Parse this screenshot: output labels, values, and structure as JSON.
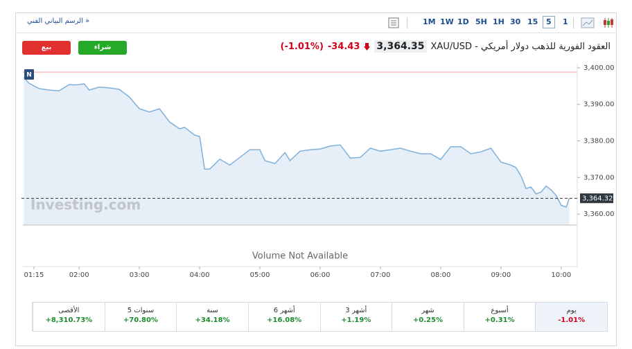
{
  "toolbar": {
    "link": "الرسم البياني الفني »",
    "intervals": [
      "1M",
      "1W",
      "1D",
      "5H",
      "1H",
      "30",
      "15",
      "5",
      "1"
    ],
    "selected_interval": "5"
  },
  "buttons": {
    "sell": "بيع",
    "buy": "شراء"
  },
  "header": {
    "title": "XAU/USD - العقود الفورية للذهب دولار أمريكي",
    "price": "3,364.35",
    "change": "-34.43",
    "change_percent": "(-1.01%)"
  },
  "chart_data": {
    "type": "area",
    "watermark": "Investing.com",
    "badge": "N",
    "volume_note": "Volume Not Available",
    "color": "#7fb0da",
    "fill": "#e6eef7",
    "x": [
      65,
      70,
      80,
      90,
      100,
      110,
      115,
      120,
      125,
      130,
      140,
      150,
      160,
      170,
      180,
      190,
      200,
      210,
      220,
      225,
      235,
      240,
      245,
      250,
      260,
      270,
      280,
      290,
      300,
      305,
      315,
      325,
      330,
      340,
      350,
      360,
      370,
      380,
      390,
      400,
      410,
      420,
      430,
      440,
      450,
      460,
      470,
      475,
      480,
      490,
      500,
      510,
      520,
      530,
      540,
      550,
      555,
      560,
      565,
      570,
      575,
      580,
      585,
      590,
      595,
      600,
      605,
      608
    ],
    "values": [
      3397.3,
      3395.8,
      3394.3,
      3393.9,
      3393.7,
      3395.4,
      3395.3,
      3395.4,
      3395.6,
      3393.9,
      3394.7,
      3394.5,
      3394.1,
      3392.0,
      3388.8,
      3387.9,
      3388.8,
      3385.2,
      3383.3,
      3383.7,
      3381.6,
      3381.2,
      3372.3,
      3372.3,
      3375.0,
      3373.4,
      3375.5,
      3377.6,
      3377.6,
      3374.6,
      3373.8,
      3376.8,
      3374.6,
      3377.2,
      3377.6,
      3377.8,
      3378.6,
      3378.9,
      3375.3,
      3375.5,
      3378.0,
      3377.2,
      3377.6,
      3378.0,
      3377.2,
      3376.5,
      3376.5,
      3375.7,
      3374.9,
      3378.4,
      3378.4,
      3376.5,
      3377.0,
      3378.0,
      3374.2,
      3373.4,
      3372.7,
      3370.4,
      3367.0,
      3367.4,
      3365.5,
      3366.0,
      3367.7,
      3366.6,
      3365.1,
      3362.4,
      3361.9,
      3364.3
    ],
    "current_price": 3364.32,
    "current_price_label": "3,364.32",
    "reference_line": 3398.8,
    "xlim": [
      64,
      616
    ],
    "xticks": [
      {
        "value": 75,
        "label": "01:15"
      },
      {
        "value": 120,
        "label": "02:00"
      },
      {
        "value": 180,
        "label": "03:00"
      },
      {
        "value": 240,
        "label": "04:00"
      },
      {
        "value": 300,
        "label": "05:00"
      },
      {
        "value": 360,
        "label": "06:00"
      },
      {
        "value": 420,
        "label": "07:00"
      },
      {
        "value": 480,
        "label": "08:00"
      },
      {
        "value": 540,
        "label": "09:00"
      },
      {
        "value": 600,
        "label": "10:00"
      }
    ],
    "ylim": [
      3357,
      3401.1
    ],
    "yticks": [
      {
        "value": 3360,
        "label": "3,360.00"
      },
      {
        "value": 3370,
        "label": "3,370.00"
      },
      {
        "value": 3380,
        "label": "3,380.00"
      },
      {
        "value": 3390,
        "label": "3,390.00"
      },
      {
        "value": 3400,
        "label": "3,400.00"
      }
    ],
    "grid": false
  },
  "performance": [
    {
      "period": "يوم",
      "change": "-1.01%"
    },
    {
      "period": "أسبوع",
      "change": "+0.31%"
    },
    {
      "period": "شهر",
      "change": "+0.25%"
    },
    {
      "period": "3 أشهر",
      "change": "+1.19%"
    },
    {
      "period": "6 أشهر",
      "change": "+16.08%"
    },
    {
      "period": "سنة",
      "change": "+34.18%"
    },
    {
      "period": "5 سنوات",
      "change": "+70.80%"
    },
    {
      "period": "الأقصى",
      "change": "+8,310.73%"
    }
  ]
}
